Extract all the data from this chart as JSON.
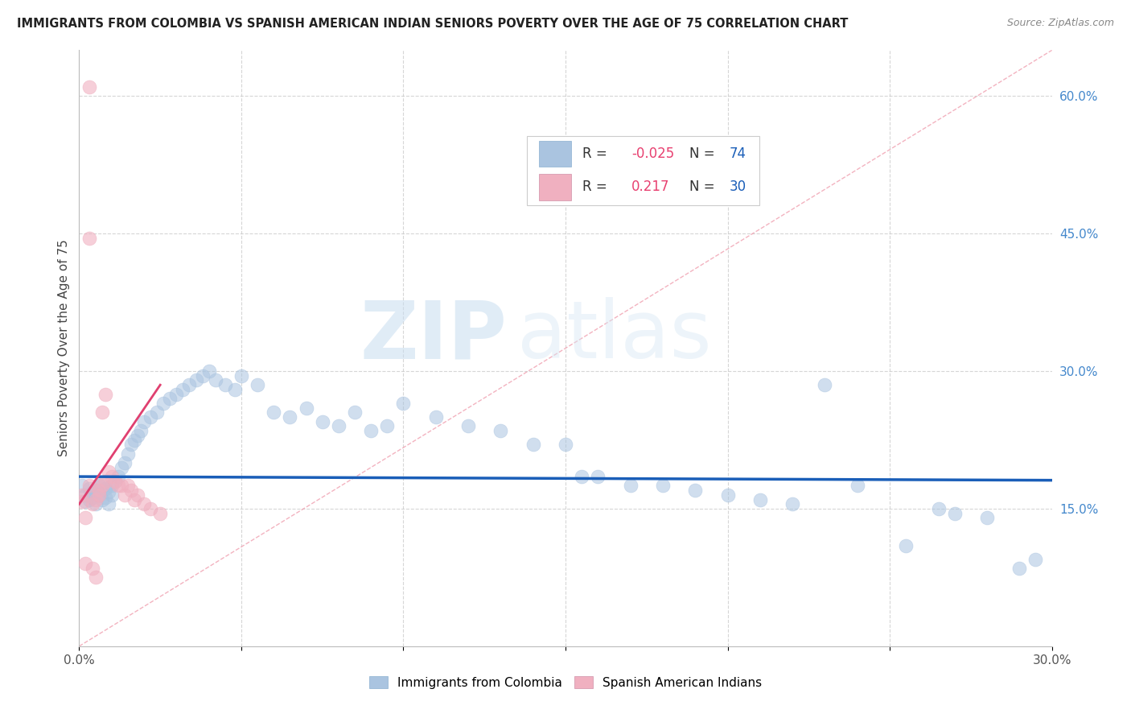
{
  "title": "IMMIGRANTS FROM COLOMBIA VS SPANISH AMERICAN INDIAN SENIORS POVERTY OVER THE AGE OF 75 CORRELATION CHART",
  "source": "Source: ZipAtlas.com",
  "ylabel": "Seniors Poverty Over the Age of 75",
  "xlim": [
    0.0,
    0.3
  ],
  "ylim": [
    0.0,
    0.65
  ],
  "ytick_vals_right": [
    0.15,
    0.3,
    0.45,
    0.6
  ],
  "ytick_labels_right": [
    "15.0%",
    "30.0%",
    "45.0%",
    "60.0%"
  ],
  "color_blue": "#aac4e0",
  "color_pink": "#f0b0c0",
  "line_blue": "#1a5eb8",
  "line_pink": "#e04070",
  "line_diag": "#f0a0b0",
  "watermark_zip": "ZIP",
  "watermark_atlas": "atlas",
  "legend_R1": "-0.025",
  "legend_N1": "74",
  "legend_R2": "0.217",
  "legend_N2": "30",
  "blue_x": [
    0.001,
    0.002,
    0.002,
    0.003,
    0.003,
    0.004,
    0.004,
    0.005,
    0.005,
    0.006,
    0.006,
    0.007,
    0.007,
    0.008,
    0.008,
    0.009,
    0.009,
    0.01,
    0.01,
    0.011,
    0.012,
    0.013,
    0.014,
    0.015,
    0.016,
    0.017,
    0.018,
    0.019,
    0.02,
    0.022,
    0.024,
    0.026,
    0.028,
    0.03,
    0.032,
    0.034,
    0.036,
    0.038,
    0.04,
    0.042,
    0.045,
    0.048,
    0.05,
    0.055,
    0.06,
    0.065,
    0.07,
    0.075,
    0.08,
    0.085,
    0.09,
    0.095,
    0.1,
    0.11,
    0.12,
    0.13,
    0.14,
    0.15,
    0.155,
    0.16,
    0.17,
    0.18,
    0.19,
    0.2,
    0.21,
    0.22,
    0.23,
    0.24,
    0.255,
    0.265,
    0.27,
    0.28,
    0.29,
    0.295
  ],
  "blue_y": [
    0.175,
    0.165,
    0.158,
    0.172,
    0.16,
    0.168,
    0.162,
    0.17,
    0.155,
    0.175,
    0.165,
    0.178,
    0.16,
    0.172,
    0.162,
    0.168,
    0.155,
    0.175,
    0.165,
    0.18,
    0.185,
    0.195,
    0.2,
    0.21,
    0.22,
    0.225,
    0.23,
    0.235,
    0.245,
    0.25,
    0.255,
    0.265,
    0.27,
    0.275,
    0.28,
    0.285,
    0.29,
    0.295,
    0.3,
    0.29,
    0.285,
    0.28,
    0.295,
    0.285,
    0.255,
    0.25,
    0.26,
    0.245,
    0.24,
    0.255,
    0.235,
    0.24,
    0.265,
    0.25,
    0.24,
    0.235,
    0.22,
    0.22,
    0.185,
    0.185,
    0.175,
    0.175,
    0.17,
    0.165,
    0.16,
    0.155,
    0.285,
    0.175,
    0.11,
    0.15,
    0.145,
    0.14,
    0.085,
    0.095
  ],
  "pink_x": [
    0.001,
    0.001,
    0.002,
    0.002,
    0.003,
    0.003,
    0.004,
    0.004,
    0.005,
    0.005,
    0.006,
    0.006,
    0.007,
    0.007,
    0.008,
    0.008,
    0.009,
    0.01,
    0.011,
    0.012,
    0.013,
    0.014,
    0.015,
    0.016,
    0.017,
    0.018,
    0.02,
    0.022,
    0.025,
    0.003
  ],
  "pink_y": [
    0.158,
    0.165,
    0.14,
    0.09,
    0.61,
    0.175,
    0.155,
    0.085,
    0.16,
    0.075,
    0.17,
    0.165,
    0.175,
    0.255,
    0.18,
    0.275,
    0.19,
    0.185,
    0.18,
    0.175,
    0.175,
    0.165,
    0.175,
    0.17,
    0.16,
    0.165,
    0.155,
    0.15,
    0.145,
    0.445
  ],
  "blue_line_x": [
    0.0,
    0.3
  ],
  "blue_line_y": [
    0.185,
    0.181
  ],
  "pink_line_x": [
    0.0,
    0.025
  ],
  "pink_line_y": [
    0.155,
    0.285
  ]
}
